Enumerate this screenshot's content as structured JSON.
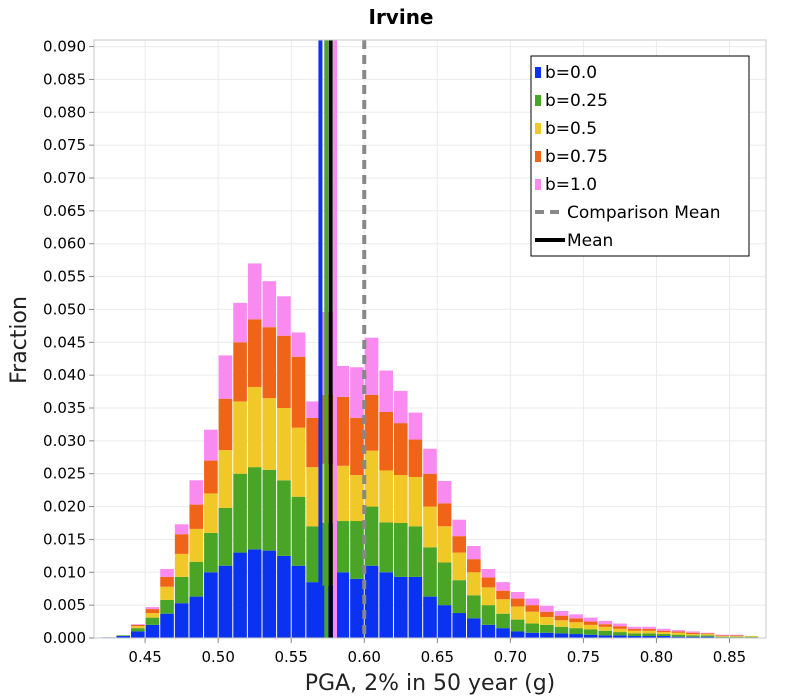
{
  "chart_data": {
    "type": "bar",
    "subtype": "stacked-histogram",
    "title": "Irvine",
    "xlabel": "PGA, 2% in 50 year (g)",
    "ylabel": "Fraction",
    "xlim": [
      0.415,
      0.875
    ],
    "ylim": [
      0.0,
      0.091
    ],
    "bin_width": 0.01,
    "x_ticks": [
      "0.45",
      "0.50",
      "0.55",
      "0.60",
      "0.65",
      "0.70",
      "0.75",
      "0.80",
      "0.85"
    ],
    "y_ticks": [
      "0.000",
      "0.005",
      "0.010",
      "0.015",
      "0.020",
      "0.025",
      "0.030",
      "0.035",
      "0.040",
      "0.045",
      "0.050",
      "0.055",
      "0.060",
      "0.065",
      "0.070",
      "0.075",
      "0.080",
      "0.085",
      "0.090"
    ],
    "grid": true,
    "legend_position": "top-right",
    "x": [
      0.425,
      0.435,
      0.445,
      0.455,
      0.465,
      0.475,
      0.485,
      0.495,
      0.505,
      0.515,
      0.525,
      0.535,
      0.545,
      0.555,
      0.565,
      0.575,
      0.585,
      0.595,
      0.605,
      0.615,
      0.625,
      0.635,
      0.645,
      0.655,
      0.665,
      0.675,
      0.685,
      0.695,
      0.705,
      0.715,
      0.725,
      0.735,
      0.745,
      0.755,
      0.765,
      0.775,
      0.785,
      0.795,
      0.805,
      0.815,
      0.825,
      0.835,
      0.845,
      0.855,
      0.865
    ],
    "series": [
      {
        "name": "b=0.0",
        "color": "#0a32f0",
        "values": [
          0.0001,
          0.0003,
          0.001,
          0.002,
          0.0037,
          0.0053,
          0.0063,
          0.01,
          0.011,
          0.013,
          0.0135,
          0.0133,
          0.0125,
          0.011,
          0.0085,
          0.008,
          0.01,
          0.009,
          0.011,
          0.01,
          0.0093,
          0.0093,
          0.0063,
          0.005,
          0.0038,
          0.003,
          0.002,
          0.0015,
          0.001,
          0.0008,
          0.0008,
          0.0007,
          0.0006,
          0.0005,
          0.0004,
          0.0004,
          0.0003,
          0.0003,
          0.0003,
          0.0002,
          0.0002,
          0.0002,
          0.0001,
          0.0001,
          0.0001
        ]
      },
      {
        "name": "b=0.25",
        "color": "#4aa426",
        "values": [
          0.0,
          0.0001,
          0.0005,
          0.0011,
          0.0021,
          0.004,
          0.0053,
          0.006,
          0.0088,
          0.012,
          0.0125,
          0.0123,
          0.0115,
          0.0105,
          0.0085,
          0.0095,
          0.0078,
          0.0088,
          0.009,
          0.0076,
          0.0082,
          0.0077,
          0.0075,
          0.0065,
          0.005,
          0.0035,
          0.003,
          0.0022,
          0.0018,
          0.0014,
          0.0012,
          0.001,
          0.0009,
          0.0008,
          0.0007,
          0.0005,
          0.0004,
          0.0004,
          0.0003,
          0.0003,
          0.0002,
          0.0002,
          0.0001,
          0.0001,
          0.0001
        ]
      },
      {
        "name": "b=0.5",
        "color": "#f0c828",
        "values": [
          0.0,
          0.0,
          0.0003,
          0.0007,
          0.002,
          0.0035,
          0.005,
          0.006,
          0.0088,
          0.011,
          0.0122,
          0.0109,
          0.011,
          0.0105,
          0.009,
          0.009,
          0.0084,
          0.007,
          0.0085,
          0.0079,
          0.0073,
          0.0075,
          0.0062,
          0.0055,
          0.0042,
          0.0035,
          0.0027,
          0.0022,
          0.002,
          0.0018,
          0.0012,
          0.001,
          0.0009,
          0.0007,
          0.0006,
          0.0005,
          0.0004,
          0.0004,
          0.0003,
          0.0003,
          0.0002,
          0.0002,
          0.0001,
          0.0001,
          0.0001
        ]
      },
      {
        "name": "b=0.75",
        "color": "#f06418",
        "values": [
          0.0,
          0.0,
          0.0002,
          0.0006,
          0.0015,
          0.003,
          0.0037,
          0.005,
          0.0078,
          0.009,
          0.0103,
          0.0108,
          0.011,
          0.0108,
          0.0075,
          0.0105,
          0.0105,
          0.0087,
          0.0085,
          0.0089,
          0.0079,
          0.0057,
          0.005,
          0.0035,
          0.0025,
          0.002,
          0.0015,
          0.0013,
          0.0012,
          0.001,
          0.0008,
          0.0007,
          0.0006,
          0.0005,
          0.0004,
          0.0004,
          0.0003,
          0.0003,
          0.0002,
          0.0002,
          0.0002,
          0.0001,
          0.0001,
          0.0001,
          0.0
        ]
      },
      {
        "name": "b=1.0",
        "color": "#f88af0",
        "values": [
          0.0,
          0.0,
          0.0001,
          0.0003,
          0.0012,
          0.0015,
          0.0037,
          0.0047,
          0.0066,
          0.006,
          0.0085,
          0.007,
          0.006,
          0.0037,
          0.0025,
          0.0126,
          0.0047,
          0.0077,
          0.0087,
          0.0063,
          0.0049,
          0.0041,
          0.0038,
          0.0034,
          0.0025,
          0.002,
          0.0013,
          0.0013,
          0.001,
          0.001,
          0.0009,
          0.0007,
          0.0006,
          0.0006,
          0.0005,
          0.0004,
          0.0003,
          0.0003,
          0.0003,
          0.0002,
          0.0002,
          0.0001,
          0.0001,
          0.0001,
          0.0
        ]
      }
    ],
    "lines": [
      {
        "name": "b=0.0 Mean",
        "x": 0.57,
        "color": "#0a32f0",
        "style": "solid"
      },
      {
        "name": "b=0.25 Mean",
        "x": 0.574,
        "color": "#4aa426",
        "style": "solid"
      },
      {
        "name": "b=1.0 Mean",
        "x": 0.58,
        "color": "#f88af0",
        "style": "solid"
      },
      {
        "name": "Mean",
        "x": 0.577,
        "color": "#000000",
        "style": "solid"
      },
      {
        "name": "Comparison Mean",
        "x": 0.6,
        "color": "#888888",
        "style": "dashed"
      }
    ],
    "legend": [
      {
        "label": "b=0.0",
        "kind": "box",
        "color": "#0a32f0"
      },
      {
        "label": "b=0.25",
        "kind": "box",
        "color": "#4aa426"
      },
      {
        "label": "b=0.5",
        "kind": "box",
        "color": "#f0c828"
      },
      {
        "label": "b=0.75",
        "kind": "box",
        "color": "#f06418"
      },
      {
        "label": "b=1.0",
        "kind": "box",
        "color": "#f88af0"
      },
      {
        "label": "Comparison Mean",
        "kind": "dashed-line",
        "color": "#888888"
      },
      {
        "label": "Mean",
        "kind": "solid-line",
        "color": "#000000"
      }
    ]
  }
}
